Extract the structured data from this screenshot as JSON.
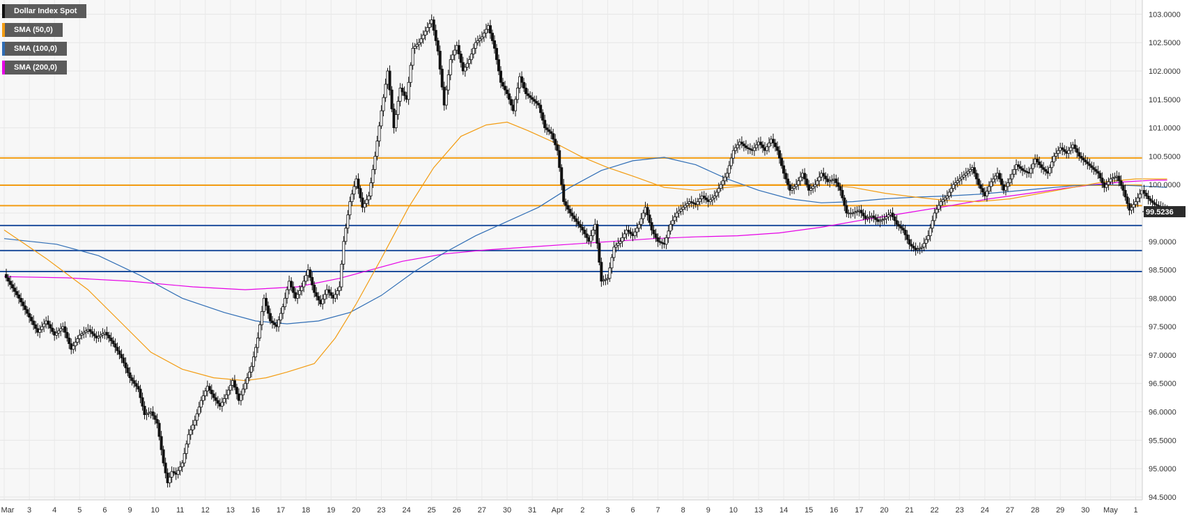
{
  "legend": [
    {
      "label": "Dollar Index Spot",
      "color": "#111111"
    },
    {
      "label": "SMA (50,0)",
      "color": "#f39c12"
    },
    {
      "label": "SMA (100,0)",
      "color": "#2f6db5"
    },
    {
      "label": "SMA (200,0)",
      "color": "#e600e6"
    }
  ],
  "chart_data": {
    "type": "candlestick",
    "price_axis": {
      "ticks": [
        "103.0000",
        "102.5000",
        "102.0000",
        "101.5000",
        "101.0000",
        "100.5000",
        "100.0000",
        "99.5000",
        "99.0000",
        "98.5000",
        "98.0000",
        "97.5000",
        "97.0000",
        "96.5000",
        "96.0000",
        "95.5000",
        "95.0000",
        "94.5000"
      ],
      "ylim": [
        94.45,
        103.25
      ],
      "current_price": "99.5236",
      "current_value": 99.5236
    },
    "time_axis": {
      "labels": [
        "Mar",
        "3",
        "4",
        "5",
        "6",
        "9",
        "10",
        "11",
        "12",
        "13",
        "16",
        "17",
        "18",
        "19",
        "20",
        "23",
        "24",
        "25",
        "26",
        "27",
        "30",
        "31",
        "Apr",
        "2",
        "3",
        "6",
        "7",
        "8",
        "9",
        "10",
        "13",
        "14",
        "15",
        "16",
        "17",
        "20",
        "21",
        "22",
        "23",
        "24",
        "27",
        "28",
        "29",
        "30",
        "May",
        "1"
      ]
    },
    "horizontal_levels": [
      {
        "value": 100.47,
        "color": "#f39c12"
      },
      {
        "value": 99.99,
        "color": "#f39c12"
      },
      {
        "value": 99.63,
        "color": "#f39c12"
      },
      {
        "value": 99.28,
        "color": "#1f4e9c"
      },
      {
        "value": 98.84,
        "color": "#1f4e9c"
      },
      {
        "value": 98.47,
        "color": "#1f4e9c"
      }
    ],
    "price_path": [
      [
        0,
        98.42
      ],
      [
        7,
        98.0
      ],
      [
        10,
        97.8
      ],
      [
        16,
        97.4
      ],
      [
        20,
        97.6
      ],
      [
        24,
        97.35
      ],
      [
        28,
        97.5
      ],
      [
        32,
        97.1
      ],
      [
        36,
        97.35
      ],
      [
        40,
        97.45
      ],
      [
        44,
        97.3
      ],
      [
        48,
        97.4
      ],
      [
        52,
        97.2
      ],
      [
        56,
        96.95
      ],
      [
        60,
        96.6
      ],
      [
        64,
        96.4
      ],
      [
        67,
        95.95
      ],
      [
        70,
        96.0
      ],
      [
        73,
        95.8
      ],
      [
        76,
        95.1
      ],
      [
        78,
        94.75
      ],
      [
        80,
        94.95
      ],
      [
        82,
        94.9
      ],
      [
        85,
        95.1
      ],
      [
        88,
        95.6
      ],
      [
        91,
        95.85
      ],
      [
        94,
        96.2
      ],
      [
        97,
        96.45
      ],
      [
        100,
        96.25
      ],
      [
        103,
        96.1
      ],
      [
        106,
        96.3
      ],
      [
        109,
        96.55
      ],
      [
        112,
        96.2
      ],
      [
        115,
        96.5
      ],
      [
        118,
        96.8
      ],
      [
        121,
        97.3
      ],
      [
        124,
        98.0
      ],
      [
        127,
        97.6
      ],
      [
        130,
        97.5
      ],
      [
        133,
        97.85
      ],
      [
        136,
        98.3
      ],
      [
        139,
        98.0
      ],
      [
        142,
        98.2
      ],
      [
        145,
        98.5
      ],
      [
        148,
        98.1
      ],
      [
        151,
        97.9
      ],
      [
        154,
        98.15
      ],
      [
        157,
        98.0
      ],
      [
        160,
        98.2
      ],
      [
        162,
        99.0
      ],
      [
        165,
        99.7
      ],
      [
        168,
        100.1
      ],
      [
        171,
        99.6
      ],
      [
        174,
        99.8
      ],
      [
        177,
        100.5
      ],
      [
        180,
        101.3
      ],
      [
        183,
        102.0
      ],
      [
        186,
        101.0
      ],
      [
        189,
        101.7
      ],
      [
        192,
        101.5
      ],
      [
        195,
        102.4
      ],
      [
        198,
        102.5
      ],
      [
        201,
        102.7
      ],
      [
        204,
        102.9
      ],
      [
        207,
        102.35
      ],
      [
        210,
        101.4
      ],
      [
        213,
        102.2
      ],
      [
        216,
        102.45
      ],
      [
        219,
        102.0
      ],
      [
        222,
        102.2
      ],
      [
        225,
        102.5
      ],
      [
        228,
        102.6
      ],
      [
        231,
        102.8
      ],
      [
        234,
        102.4
      ],
      [
        237,
        101.8
      ],
      [
        240,
        101.6
      ],
      [
        243,
        101.3
      ],
      [
        246,
        101.9
      ],
      [
        249,
        101.6
      ],
      [
        252,
        101.5
      ],
      [
        255,
        101.4
      ],
      [
        258,
        101.0
      ],
      [
        261,
        100.9
      ],
      [
        264,
        100.6
      ],
      [
        267,
        99.7
      ],
      [
        270,
        99.5
      ],
      [
        273,
        99.35
      ],
      [
        276,
        99.2
      ],
      [
        279,
        99.0
      ],
      [
        282,
        99.3
      ],
      [
        285,
        98.3
      ],
      [
        288,
        98.35
      ],
      [
        291,
        98.9
      ],
      [
        294,
        99.0
      ],
      [
        297,
        99.2
      ],
      [
        300,
        99.1
      ],
      [
        303,
        99.3
      ],
      [
        306,
        99.6
      ],
      [
        309,
        99.2
      ],
      [
        312,
        99.0
      ],
      [
        315,
        98.95
      ],
      [
        318,
        99.3
      ],
      [
        321,
        99.5
      ],
      [
        324,
        99.6
      ],
      [
        327,
        99.7
      ],
      [
        330,
        99.65
      ],
      [
        333,
        99.8
      ],
      [
        336,
        99.7
      ],
      [
        339,
        99.8
      ],
      [
        342,
        100.0
      ],
      [
        345,
        100.2
      ],
      [
        348,
        100.6
      ],
      [
        351,
        100.75
      ],
      [
        354,
        100.65
      ],
      [
        357,
        100.6
      ],
      [
        360,
        100.75
      ],
      [
        363,
        100.6
      ],
      [
        366,
        100.8
      ],
      [
        369,
        100.6
      ],
      [
        372,
        100.2
      ],
      [
        375,
        99.9
      ],
      [
        378,
        100.0
      ],
      [
        381,
        100.2
      ],
      [
        384,
        99.9
      ],
      [
        387,
        100.0
      ],
      [
        390,
        100.2
      ],
      [
        393,
        100.05
      ],
      [
        396,
        100.1
      ],
      [
        399,
        99.9
      ],
      [
        402,
        99.5
      ],
      [
        405,
        99.5
      ],
      [
        408,
        99.55
      ],
      [
        411,
        99.4
      ],
      [
        414,
        99.45
      ],
      [
        417,
        99.35
      ],
      [
        420,
        99.4
      ],
      [
        423,
        99.5
      ],
      [
        426,
        99.3
      ],
      [
        429,
        99.2
      ],
      [
        432,
        98.95
      ],
      [
        435,
        98.85
      ],
      [
        438,
        98.9
      ],
      [
        441,
        99.1
      ],
      [
        444,
        99.5
      ],
      [
        447,
        99.7
      ],
      [
        450,
        99.8
      ],
      [
        453,
        100.0
      ],
      [
        456,
        100.1
      ],
      [
        459,
        100.2
      ],
      [
        462,
        100.3
      ],
      [
        465,
        100.0
      ],
      [
        468,
        99.8
      ],
      [
        471,
        100.05
      ],
      [
        474,
        100.2
      ],
      [
        477,
        99.9
      ],
      [
        480,
        100.1
      ],
      [
        483,
        100.35
      ],
      [
        486,
        100.25
      ],
      [
        489,
        100.2
      ],
      [
        492,
        100.45
      ],
      [
        495,
        100.3
      ],
      [
        498,
        100.2
      ],
      [
        501,
        100.5
      ],
      [
        504,
        100.65
      ],
      [
        507,
        100.55
      ],
      [
        510,
        100.7
      ],
      [
        513,
        100.5
      ],
      [
        516,
        100.4
      ],
      [
        519,
        100.3
      ],
      [
        522,
        100.2
      ],
      [
        525,
        99.95
      ],
      [
        528,
        100.1
      ],
      [
        531,
        100.15
      ],
      [
        534,
        99.9
      ],
      [
        537,
        99.55
      ],
      [
        540,
        99.7
      ],
      [
        543,
        99.9
      ],
      [
        546,
        99.75
      ],
      [
        549,
        99.65
      ],
      [
        552,
        99.6
      ],
      [
        555,
        99.52
      ]
    ],
    "sma_50": [
      [
        0,
        99.2
      ],
      [
        20,
        98.7
      ],
      [
        40,
        98.15
      ],
      [
        55,
        97.6
      ],
      [
        70,
        97.05
      ],
      [
        85,
        96.75
      ],
      [
        100,
        96.6
      ],
      [
        115,
        96.55
      ],
      [
        125,
        96.6
      ],
      [
        135,
        96.7
      ],
      [
        148,
        96.85
      ],
      [
        158,
        97.3
      ],
      [
        168,
        97.9
      ],
      [
        180,
        98.7
      ],
      [
        193,
        99.6
      ],
      [
        205,
        100.3
      ],
      [
        218,
        100.85
      ],
      [
        230,
        101.05
      ],
      [
        240,
        101.1
      ],
      [
        250,
        100.95
      ],
      [
        262,
        100.75
      ],
      [
        275,
        100.5
      ],
      [
        288,
        100.3
      ],
      [
        300,
        100.15
      ],
      [
        315,
        99.95
      ],
      [
        330,
        99.9
      ],
      [
        345,
        99.95
      ],
      [
        360,
        100.0
      ],
      [
        375,
        100.0
      ],
      [
        390,
        100.0
      ],
      [
        405,
        99.95
      ],
      [
        420,
        99.85
      ],
      [
        435,
        99.78
      ],
      [
        450,
        99.72
      ],
      [
        465,
        99.7
      ],
      [
        480,
        99.75
      ],
      [
        495,
        99.85
      ],
      [
        510,
        99.95
      ],
      [
        525,
        100.05
      ],
      [
        540,
        100.1
      ],
      [
        555,
        100.1
      ]
    ],
    "sma_100": [
      [
        0,
        99.05
      ],
      [
        25,
        98.95
      ],
      [
        45,
        98.75
      ],
      [
        65,
        98.4
      ],
      [
        85,
        98.0
      ],
      [
        105,
        97.75
      ],
      [
        120,
        97.6
      ],
      [
        135,
        97.55
      ],
      [
        150,
        97.6
      ],
      [
        165,
        97.75
      ],
      [
        180,
        98.05
      ],
      [
        195,
        98.45
      ],
      [
        210,
        98.8
      ],
      [
        225,
        99.1
      ],
      [
        240,
        99.35
      ],
      [
        255,
        99.6
      ],
      [
        270,
        99.95
      ],
      [
        285,
        100.25
      ],
      [
        300,
        100.42
      ],
      [
        315,
        100.48
      ],
      [
        330,
        100.35
      ],
      [
        345,
        100.1
      ],
      [
        360,
        99.9
      ],
      [
        375,
        99.75
      ],
      [
        390,
        99.68
      ],
      [
        405,
        99.7
      ],
      [
        420,
        99.75
      ],
      [
        435,
        99.78
      ],
      [
        450,
        99.8
      ],
      [
        465,
        99.83
      ],
      [
        480,
        99.88
      ],
      [
        495,
        99.93
      ],
      [
        510,
        99.98
      ],
      [
        525,
        100.0
      ],
      [
        540,
        99.98
      ],
      [
        555,
        99.95
      ]
    ],
    "sma_200": [
      [
        0,
        98.38
      ],
      [
        30,
        98.36
      ],
      [
        60,
        98.3
      ],
      [
        90,
        98.2
      ],
      [
        115,
        98.15
      ],
      [
        140,
        98.2
      ],
      [
        160,
        98.35
      ],
      [
        175,
        98.5
      ],
      [
        190,
        98.65
      ],
      [
        210,
        98.78
      ],
      [
        230,
        98.85
      ],
      [
        250,
        98.9
      ],
      [
        270,
        98.95
      ],
      [
        290,
        99.0
      ],
      [
        310,
        99.05
      ],
      [
        330,
        99.08
      ],
      [
        350,
        99.1
      ],
      [
        370,
        99.15
      ],
      [
        390,
        99.25
      ],
      [
        410,
        99.38
      ],
      [
        430,
        99.5
      ],
      [
        450,
        99.62
      ],
      [
        470,
        99.75
      ],
      [
        490,
        99.85
      ],
      [
        505,
        99.93
      ],
      [
        520,
        100.0
      ],
      [
        535,
        100.05
      ],
      [
        550,
        100.08
      ],
      [
        555,
        100.08
      ]
    ]
  }
}
